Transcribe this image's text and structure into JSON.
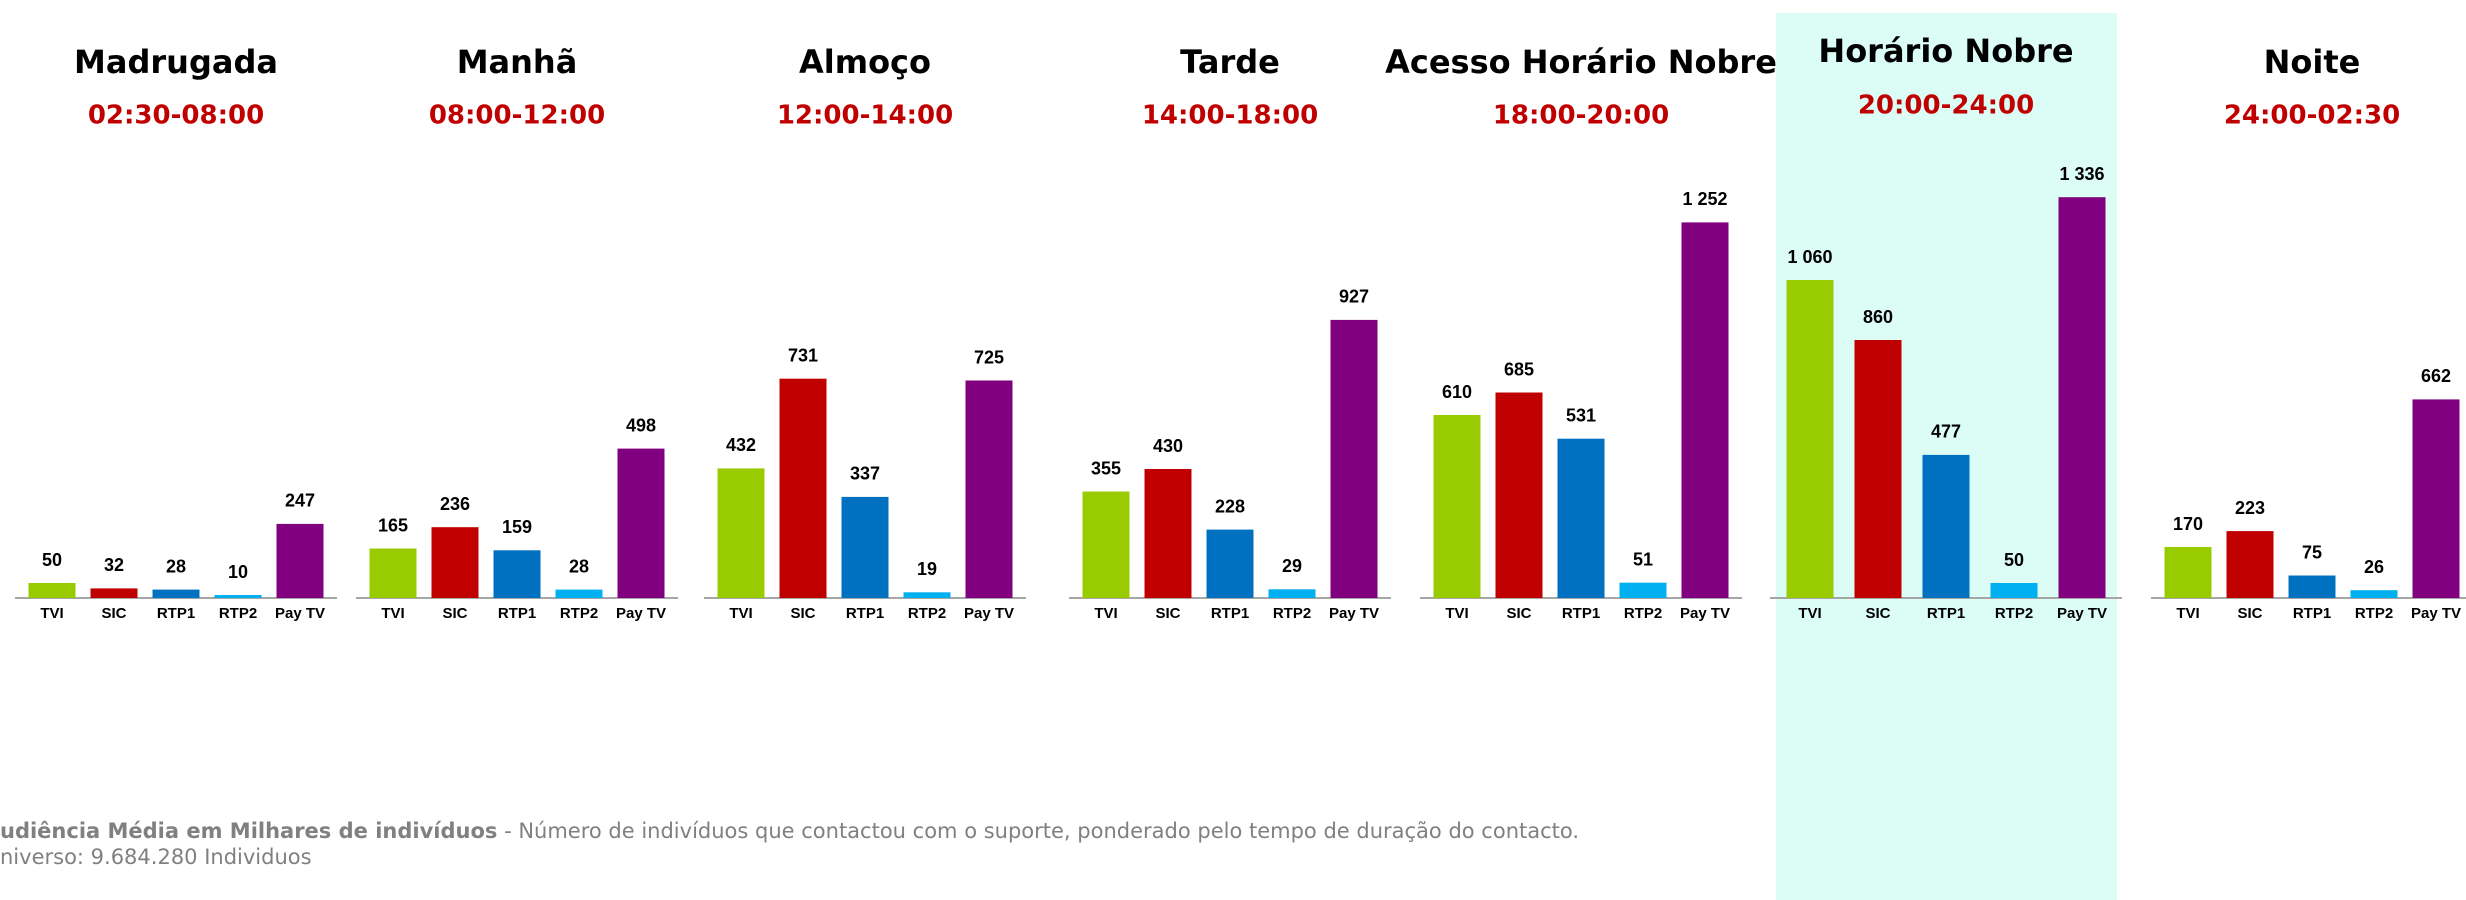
{
  "chart_data": [
    {
      "type": "bar",
      "title": "Madrugada",
      "subtitle": "02:30-08:00",
      "categories": [
        "TVI",
        "SIC",
        "RTP1",
        "RTP2",
        "Pay TV"
      ],
      "values": [
        50,
        32,
        28,
        10,
        247
      ],
      "colors": [
        "#99cc00",
        "#c00000",
        "#0070c0",
        "#00b0f0",
        "#800080"
      ]
    },
    {
      "type": "bar",
      "title": "Manhã",
      "subtitle": "08:00-12:00",
      "categories": [
        "TVI",
        "SIC",
        "RTP1",
        "RTP2",
        "Pay TV"
      ],
      "values": [
        165,
        236,
        159,
        28,
        498
      ],
      "colors": [
        "#99cc00",
        "#c00000",
        "#0070c0",
        "#00b0f0",
        "#800080"
      ]
    },
    {
      "type": "bar",
      "title": "Almoço",
      "subtitle": "12:00-14:00",
      "categories": [
        "TVI",
        "SIC",
        "RTP1",
        "RTP2",
        "Pay TV"
      ],
      "values": [
        432,
        731,
        337,
        19,
        725
      ],
      "colors": [
        "#99cc00",
        "#c00000",
        "#0070c0",
        "#00b0f0",
        "#800080"
      ]
    },
    {
      "type": "bar",
      "title": "Tarde",
      "subtitle": "14:00-18:00",
      "categories": [
        "TVI",
        "SIC",
        "RTP1",
        "RTP2",
        "Pay TV"
      ],
      "values": [
        355,
        430,
        228,
        29,
        927
      ],
      "colors": [
        "#99cc00",
        "#c00000",
        "#0070c0",
        "#00b0f0",
        "#800080"
      ]
    },
    {
      "type": "bar",
      "title": "Acesso Horário Nobre",
      "subtitle": "18:00-20:00",
      "categories": [
        "TVI",
        "SIC",
        "RTP1",
        "RTP2",
        "Pay TV"
      ],
      "values": [
        610,
        685,
        531,
        51,
        1252
      ],
      "value_labels": [
        "610",
        "685",
        "531",
        "51",
        "1 252"
      ],
      "colors": [
        "#99cc00",
        "#c00000",
        "#0070c0",
        "#00b0f0",
        "#800080"
      ]
    },
    {
      "type": "bar",
      "title": "Horário Nobre",
      "subtitle": "20:00-24:00",
      "categories": [
        "TVI",
        "SIC",
        "RTP1",
        "RTP2",
        "Pay TV"
      ],
      "values": [
        1060,
        860,
        477,
        50,
        1336
      ],
      "value_labels": [
        "1 060",
        "860",
        "477",
        "50",
        "1 336"
      ],
      "colors": [
        "#99cc00",
        "#c00000",
        "#0070c0",
        "#00b0f0",
        "#800080"
      ],
      "highlight": true
    },
    {
      "type": "bar",
      "title": "Noite",
      "subtitle": "24:00-02:30",
      "categories": [
        "TVI",
        "SIC",
        "RTP1",
        "RTP2",
        "Pay TV"
      ],
      "values": [
        170,
        223,
        75,
        26,
        662
      ],
      "colors": [
        "#99cc00",
        "#c00000",
        "#0070c0",
        "#00b0f0",
        "#800080"
      ]
    }
  ],
  "footnote": {
    "bold": "udiência Média em Milhares de indivíduos",
    "text": " - Número de indivíduos que contactou com o suporte, ponderado pelo tempo de duração do contacto.",
    "universe": "niverso: 9.684.280 Individuos"
  }
}
